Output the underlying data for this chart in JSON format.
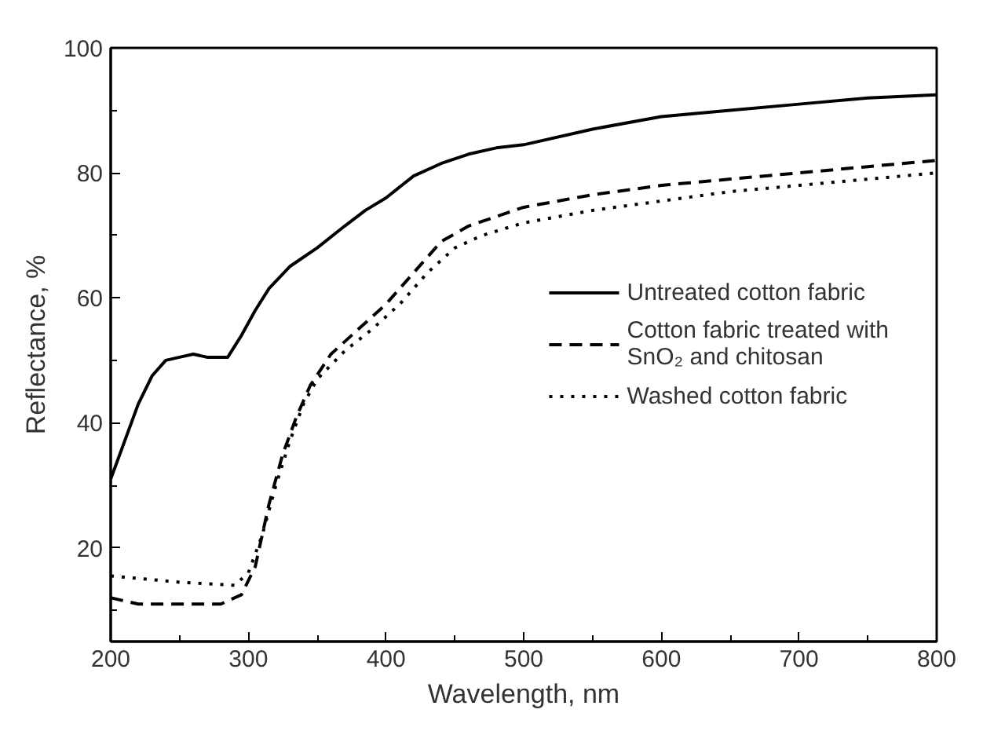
{
  "chart_data": {
    "type": "line",
    "xlabel": "Wavelength, nm",
    "ylabel": "Reflectance, %",
    "xlim": [
      200,
      800
    ],
    "ylim": [
      5,
      100
    ],
    "xticks": [
      200,
      300,
      400,
      500,
      600,
      700,
      800
    ],
    "yticks": [
      20,
      40,
      60,
      80,
      100
    ],
    "grid": false,
    "legend": "right",
    "marker": "none",
    "series": [
      {
        "name": "Untreated cotton fabric",
        "color": "#000000",
        "line_style": "solid",
        "x": [
          200,
          210,
          220,
          230,
          240,
          250,
          260,
          270,
          285,
          295,
          305,
          315,
          330,
          350,
          370,
          385,
          400,
          420,
          440,
          460,
          480,
          500,
          550,
          600,
          650,
          700,
          750,
          800
        ],
        "values": [
          31,
          37,
          43,
          47.5,
          50,
          50.5,
          51,
          50.5,
          50.5,
          54,
          58,
          61.5,
          65,
          68,
          71.5,
          74,
          76,
          79.5,
          81.5,
          83,
          84,
          84.5,
          87,
          89,
          90,
          91,
          92,
          92.5
        ]
      },
      {
        "name": "Cotton fabric treated with SnO₂ and chitosan",
        "color": "#000000",
        "line_style": "dashed",
        "x": [
          200,
          220,
          240,
          280,
          295,
          305,
          315,
          325,
          335,
          345,
          360,
          380,
          400,
          420,
          440,
          460,
          480,
          500,
          550,
          600,
          650,
          700,
          750,
          800
        ],
        "values": [
          12,
          11,
          11,
          11,
          12.5,
          17,
          27,
          35,
          41,
          46,
          51,
          55,
          59,
          64,
          69,
          71.5,
          73,
          74.5,
          76.5,
          78,
          79,
          80,
          81,
          82
        ]
      },
      {
        "name": "Washed cotton fabric",
        "color": "#000000",
        "line_style": "dotted",
        "x": [
          200,
          250,
          290,
          300,
          310,
          320,
          330,
          340,
          350,
          370,
          390,
          410,
          430,
          450,
          470,
          500,
          550,
          600,
          650,
          700,
          750,
          800
        ],
        "values": [
          15.5,
          14.5,
          14,
          16,
          22,
          30,
          37,
          43,
          47,
          51.5,
          55,
          59,
          64,
          68,
          70,
          72,
          74,
          75.5,
          77,
          78,
          79,
          80
        ]
      }
    ]
  }
}
